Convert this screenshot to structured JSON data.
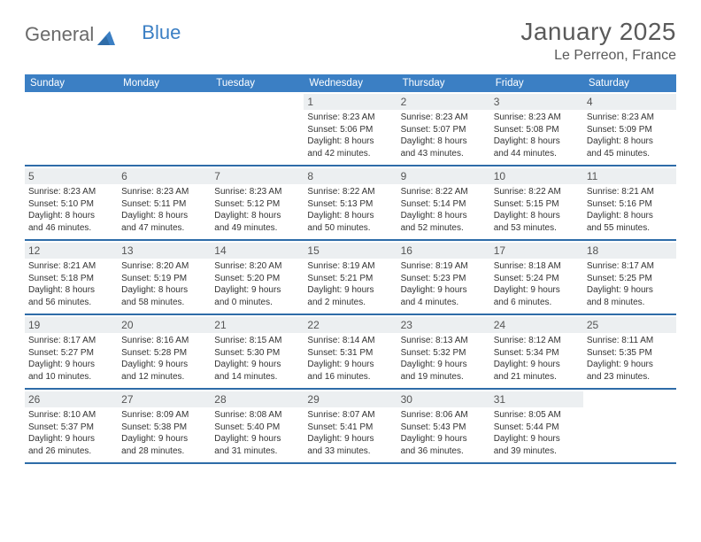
{
  "brand": {
    "general": "General",
    "blue": "Blue"
  },
  "title": "January 2025",
  "location": "Le Perreon, France",
  "header_color": "#3b7fc4",
  "sep_color": "#2e6ca8",
  "daynum_bg": "#eceff1",
  "day_names": [
    "Sunday",
    "Monday",
    "Tuesday",
    "Wednesday",
    "Thursday",
    "Friday",
    "Saturday"
  ],
  "weeks": [
    [
      {
        "n": "",
        "sr": "",
        "ss": "",
        "d1": "",
        "d2": ""
      },
      {
        "n": "",
        "sr": "",
        "ss": "",
        "d1": "",
        "d2": ""
      },
      {
        "n": "",
        "sr": "",
        "ss": "",
        "d1": "",
        "d2": ""
      },
      {
        "n": "1",
        "sr": "Sunrise: 8:23 AM",
        "ss": "Sunset: 5:06 PM",
        "d1": "Daylight: 8 hours",
        "d2": "and 42 minutes."
      },
      {
        "n": "2",
        "sr": "Sunrise: 8:23 AM",
        "ss": "Sunset: 5:07 PM",
        "d1": "Daylight: 8 hours",
        "d2": "and 43 minutes."
      },
      {
        "n": "3",
        "sr": "Sunrise: 8:23 AM",
        "ss": "Sunset: 5:08 PM",
        "d1": "Daylight: 8 hours",
        "d2": "and 44 minutes."
      },
      {
        "n": "4",
        "sr": "Sunrise: 8:23 AM",
        "ss": "Sunset: 5:09 PM",
        "d1": "Daylight: 8 hours",
        "d2": "and 45 minutes."
      }
    ],
    [
      {
        "n": "5",
        "sr": "Sunrise: 8:23 AM",
        "ss": "Sunset: 5:10 PM",
        "d1": "Daylight: 8 hours",
        "d2": "and 46 minutes."
      },
      {
        "n": "6",
        "sr": "Sunrise: 8:23 AM",
        "ss": "Sunset: 5:11 PM",
        "d1": "Daylight: 8 hours",
        "d2": "and 47 minutes."
      },
      {
        "n": "7",
        "sr": "Sunrise: 8:23 AM",
        "ss": "Sunset: 5:12 PM",
        "d1": "Daylight: 8 hours",
        "d2": "and 49 minutes."
      },
      {
        "n": "8",
        "sr": "Sunrise: 8:22 AM",
        "ss": "Sunset: 5:13 PM",
        "d1": "Daylight: 8 hours",
        "d2": "and 50 minutes."
      },
      {
        "n": "9",
        "sr": "Sunrise: 8:22 AM",
        "ss": "Sunset: 5:14 PM",
        "d1": "Daylight: 8 hours",
        "d2": "and 52 minutes."
      },
      {
        "n": "10",
        "sr": "Sunrise: 8:22 AM",
        "ss": "Sunset: 5:15 PM",
        "d1": "Daylight: 8 hours",
        "d2": "and 53 minutes."
      },
      {
        "n": "11",
        "sr": "Sunrise: 8:21 AM",
        "ss": "Sunset: 5:16 PM",
        "d1": "Daylight: 8 hours",
        "d2": "and 55 minutes."
      }
    ],
    [
      {
        "n": "12",
        "sr": "Sunrise: 8:21 AM",
        "ss": "Sunset: 5:18 PM",
        "d1": "Daylight: 8 hours",
        "d2": "and 56 minutes."
      },
      {
        "n": "13",
        "sr": "Sunrise: 8:20 AM",
        "ss": "Sunset: 5:19 PM",
        "d1": "Daylight: 8 hours",
        "d2": "and 58 minutes."
      },
      {
        "n": "14",
        "sr": "Sunrise: 8:20 AM",
        "ss": "Sunset: 5:20 PM",
        "d1": "Daylight: 9 hours",
        "d2": "and 0 minutes."
      },
      {
        "n": "15",
        "sr": "Sunrise: 8:19 AM",
        "ss": "Sunset: 5:21 PM",
        "d1": "Daylight: 9 hours",
        "d2": "and 2 minutes."
      },
      {
        "n": "16",
        "sr": "Sunrise: 8:19 AM",
        "ss": "Sunset: 5:23 PM",
        "d1": "Daylight: 9 hours",
        "d2": "and 4 minutes."
      },
      {
        "n": "17",
        "sr": "Sunrise: 8:18 AM",
        "ss": "Sunset: 5:24 PM",
        "d1": "Daylight: 9 hours",
        "d2": "and 6 minutes."
      },
      {
        "n": "18",
        "sr": "Sunrise: 8:17 AM",
        "ss": "Sunset: 5:25 PM",
        "d1": "Daylight: 9 hours",
        "d2": "and 8 minutes."
      }
    ],
    [
      {
        "n": "19",
        "sr": "Sunrise: 8:17 AM",
        "ss": "Sunset: 5:27 PM",
        "d1": "Daylight: 9 hours",
        "d2": "and 10 minutes."
      },
      {
        "n": "20",
        "sr": "Sunrise: 8:16 AM",
        "ss": "Sunset: 5:28 PM",
        "d1": "Daylight: 9 hours",
        "d2": "and 12 minutes."
      },
      {
        "n": "21",
        "sr": "Sunrise: 8:15 AM",
        "ss": "Sunset: 5:30 PM",
        "d1": "Daylight: 9 hours",
        "d2": "and 14 minutes."
      },
      {
        "n": "22",
        "sr": "Sunrise: 8:14 AM",
        "ss": "Sunset: 5:31 PM",
        "d1": "Daylight: 9 hours",
        "d2": "and 16 minutes."
      },
      {
        "n": "23",
        "sr": "Sunrise: 8:13 AM",
        "ss": "Sunset: 5:32 PM",
        "d1": "Daylight: 9 hours",
        "d2": "and 19 minutes."
      },
      {
        "n": "24",
        "sr": "Sunrise: 8:12 AM",
        "ss": "Sunset: 5:34 PM",
        "d1": "Daylight: 9 hours",
        "d2": "and 21 minutes."
      },
      {
        "n": "25",
        "sr": "Sunrise: 8:11 AM",
        "ss": "Sunset: 5:35 PM",
        "d1": "Daylight: 9 hours",
        "d2": "and 23 minutes."
      }
    ],
    [
      {
        "n": "26",
        "sr": "Sunrise: 8:10 AM",
        "ss": "Sunset: 5:37 PM",
        "d1": "Daylight: 9 hours",
        "d2": "and 26 minutes."
      },
      {
        "n": "27",
        "sr": "Sunrise: 8:09 AM",
        "ss": "Sunset: 5:38 PM",
        "d1": "Daylight: 9 hours",
        "d2": "and 28 minutes."
      },
      {
        "n": "28",
        "sr": "Sunrise: 8:08 AM",
        "ss": "Sunset: 5:40 PM",
        "d1": "Daylight: 9 hours",
        "d2": "and 31 minutes."
      },
      {
        "n": "29",
        "sr": "Sunrise: 8:07 AM",
        "ss": "Sunset: 5:41 PM",
        "d1": "Daylight: 9 hours",
        "d2": "and 33 minutes."
      },
      {
        "n": "30",
        "sr": "Sunrise: 8:06 AM",
        "ss": "Sunset: 5:43 PM",
        "d1": "Daylight: 9 hours",
        "d2": "and 36 minutes."
      },
      {
        "n": "31",
        "sr": "Sunrise: 8:05 AM",
        "ss": "Sunset: 5:44 PM",
        "d1": "Daylight: 9 hours",
        "d2": "and 39 minutes."
      },
      {
        "n": "",
        "sr": "",
        "ss": "",
        "d1": "",
        "d2": ""
      }
    ]
  ]
}
